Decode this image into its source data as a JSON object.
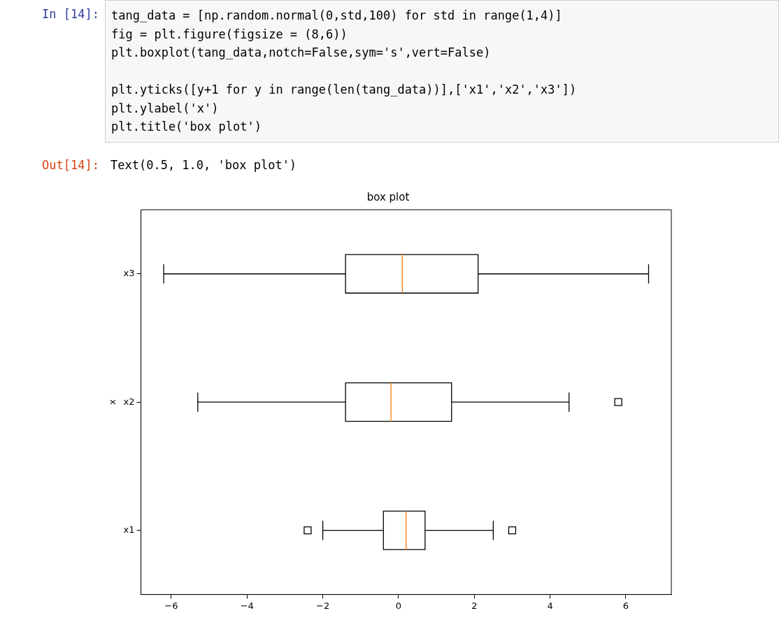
{
  "chart_data": {
    "type": "box",
    "title": "box plot",
    "ylabel": "x",
    "orientation": "horizontal",
    "categories": [
      "x3",
      "x2",
      "x1"
    ],
    "series": [
      {
        "color": "#000000",
        "boxes": [
          {
            "low": -6.2,
            "q1": -1.4,
            "median": 0.1,
            "q3": 2.1,
            "high": 6.6
          },
          {
            "low": -5.3,
            "q1": -1.4,
            "median": -0.2,
            "q3": 1.4,
            "high": 4.5,
            "outliers": [
              5.8
            ]
          },
          {
            "low": -2.0,
            "q1": -0.4,
            "median": 0.2,
            "q3": 0.7,
            "high": 2.5,
            "outliers": [
              -2.4,
              3.0
            ]
          }
        ]
      }
    ],
    "xlim": [
      -6.8,
      7.2
    ],
    "xticks": [
      {
        "value": -6,
        "label": "−6"
      },
      {
        "value": -4,
        "label": "−4"
      },
      {
        "value": -2,
        "label": "−2"
      },
      0,
      2,
      4,
      6
    ],
    "grid": false,
    "legend": false,
    "marker": "square",
    "annotations": [
      "In [14]:",
      "tang_data = [np.random.normal(0,std,100) for std in range(1,4)]\nfig = plt.figure(figsize = (8,6))\nplt.boxplot(tang_data,notch=False,sym='s',vert=False)\n\nplt.yticks([y+1 for y in range(len(tang_data))],['x1','x2','x3'])\nplt.ylabel('x')\nplt.title('box plot')",
      "Out[14]:",
      "Text(0.5, 1.0, 'box plot')"
    ]
  }
}
